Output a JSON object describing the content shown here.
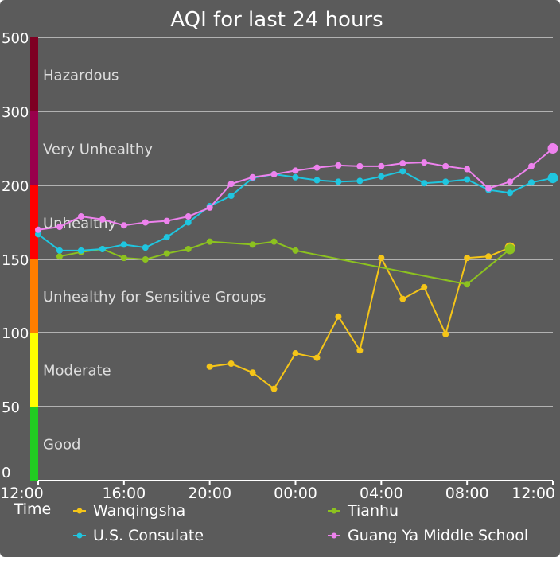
{
  "chart_data": {
    "type": "line",
    "title": "AQI for last 24 hours",
    "xlabel": "Time",
    "x_ticks": [
      "12:00",
      "16:00",
      "20:00",
      "00:00",
      "04:00",
      "08:00",
      "12:00"
    ],
    "y_ticks": [
      "0",
      "50",
      "100",
      "150",
      "200",
      "300",
      "500"
    ],
    "grid": true,
    "legend_position": "bottom",
    "bands": [
      {
        "label": "Good",
        "from": 0,
        "to": 50,
        "color": "#22cc22"
      },
      {
        "label": "Moderate",
        "from": 50,
        "to": 100,
        "color": "#ffff00"
      },
      {
        "label": "Unhealthy for Sensitive Groups",
        "from": 100,
        "to": 150,
        "color": "#ff7e00"
      },
      {
        "label": "Unhealthy",
        "from": 150,
        "to": 200,
        "color": "#ff0000"
      },
      {
        "label": "Very Unhealthy",
        "from": 200,
        "to": 300,
        "color": "#99004c"
      },
      {
        "label": "Hazardous",
        "from": 300,
        "to": 500,
        "color": "#7e0023"
      }
    ],
    "series": [
      {
        "name": "Wanqingsha",
        "color": "#f5c518",
        "points": [
          [
            "20:00",
            77
          ],
          [
            "21:00",
            79
          ],
          [
            "22:00",
            73
          ],
          [
            "23:00",
            62
          ],
          [
            "00:00",
            86
          ],
          [
            "01:00",
            83
          ],
          [
            "02:00",
            111
          ],
          [
            "03:00",
            88
          ],
          [
            "04:00",
            151
          ],
          [
            "05:00",
            123
          ],
          [
            "06:00",
            131
          ],
          [
            "07:00",
            99
          ],
          [
            "08:00",
            151
          ],
          [
            "09:00",
            152
          ],
          [
            "10:00",
            158
          ]
        ]
      },
      {
        "name": "Tianhu",
        "color": "#8cc21f",
        "points": [
          [
            "13:00",
            152
          ],
          [
            "14:00",
            155
          ],
          [
            "15:00",
            157
          ],
          [
            "16:00",
            151
          ],
          [
            "17:00",
            150
          ],
          [
            "18:00",
            154
          ],
          [
            "19:00",
            157
          ],
          [
            "20:00",
            162
          ],
          [
            "22:00",
            160
          ],
          [
            "23:00",
            162
          ],
          [
            "00:00",
            156
          ],
          [
            "08:00",
            133
          ],
          [
            "10:00",
            157
          ]
        ]
      },
      {
        "name": "U.S. Consulate",
        "color": "#1fc6e0",
        "points": [
          [
            "12:00",
            167
          ],
          [
            "13:00",
            156
          ],
          [
            "14:00",
            156
          ],
          [
            "15:00",
            157
          ],
          [
            "16:00",
            160
          ],
          [
            "17:00",
            158
          ],
          [
            "18:00",
            165
          ],
          [
            "19:00",
            175
          ],
          [
            "20:00",
            186
          ],
          [
            "21:00",
            193
          ],
          [
            "22:00",
            210
          ],
          [
            "23:00",
            215
          ],
          [
            "00:00",
            211
          ],
          [
            "01:00",
            207
          ],
          [
            "02:00",
            205
          ],
          [
            "03:00",
            206
          ],
          [
            "04:00",
            212
          ],
          [
            "05:00",
            219
          ],
          [
            "06:00",
            203
          ],
          [
            "07:00",
            205
          ],
          [
            "08:00",
            208
          ],
          [
            "09:00",
            197
          ],
          [
            "10:00",
            195
          ],
          [
            "11:00",
            204
          ],
          [
            "12:00",
            210
          ]
        ]
      },
      {
        "name": "Guang Ya Middle School",
        "color": "#ee82ee",
        "points": [
          [
            "12:00",
            170
          ],
          [
            "13:00",
            172
          ],
          [
            "14:00",
            179
          ],
          [
            "15:00",
            177
          ],
          [
            "16:00",
            173
          ],
          [
            "17:00",
            175
          ],
          [
            "18:00",
            176
          ],
          [
            "19:00",
            179
          ],
          [
            "20:00",
            185
          ],
          [
            "21:00",
            202
          ],
          [
            "22:00",
            211
          ],
          [
            "23:00",
            215
          ],
          [
            "00:00",
            220
          ],
          [
            "01:00",
            224
          ],
          [
            "02:00",
            227
          ],
          [
            "03:00",
            226
          ],
          [
            "04:00",
            226
          ],
          [
            "05:00",
            230
          ],
          [
            "06:00",
            231
          ],
          [
            "07:00",
            226
          ],
          [
            "08:00",
            222
          ],
          [
            "09:00",
            198
          ],
          [
            "10:00",
            205
          ],
          [
            "11:00",
            226
          ],
          [
            "12:00",
            250
          ]
        ]
      }
    ]
  }
}
